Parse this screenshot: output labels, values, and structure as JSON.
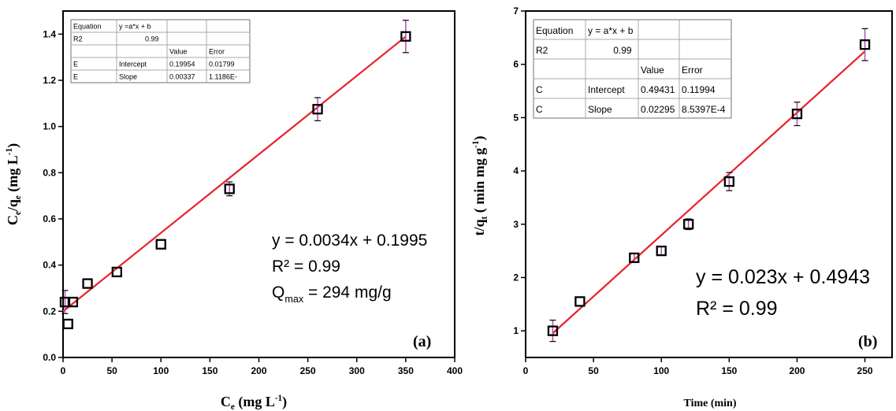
{
  "chart_data": [
    {
      "type": "scatter",
      "panel_label": "(a)",
      "xlabel": {
        "main": "C",
        "sub": "e",
        "unit": " (mg L",
        "sup": "-1",
        "end": ")"
      },
      "ylabel": {
        "main": "C",
        "sub1": "e",
        "mid": "/q",
        "sub2": "e",
        "unit": " (mg L",
        "sup": "-1",
        "end": ")"
      },
      "xlim": [
        0,
        400
      ],
      "ylim": [
        0,
        1.5
      ],
      "xticks": [
        0,
        50,
        100,
        150,
        200,
        250,
        300,
        350,
        400
      ],
      "yticks": [
        0.0,
        0.2,
        0.4,
        0.6,
        0.8,
        1.0,
        1.2,
        1.4
      ],
      "ytick_labels": [
        "0.0",
        "0.2",
        "0.4",
        "0.6",
        "0.8",
        "1.0",
        "1.2",
        "1.4"
      ],
      "points": [
        {
          "x": 2,
          "y": 0.24,
          "err": 0.05
        },
        {
          "x": 5,
          "y": 0.145,
          "err": 0
        },
        {
          "x": 10,
          "y": 0.24,
          "err": 0
        },
        {
          "x": 25,
          "y": 0.32,
          "err": 0
        },
        {
          "x": 55,
          "y": 0.37,
          "err": 0
        },
        {
          "x": 100,
          "y": 0.49,
          "err": 0
        },
        {
          "x": 170,
          "y": 0.73,
          "err": 0.03
        },
        {
          "x": 260,
          "y": 1.075,
          "err": 0.05
        },
        {
          "x": 350,
          "y": 1.39,
          "err": 0.07
        }
      ],
      "fit": {
        "slope": 0.0034,
        "intercept": 0.1995,
        "x_range": [
          0,
          350
        ]
      },
      "fit_color": "#e8212b",
      "errorbar_color": "#b050b0",
      "equation_lines": [
        "y = 0.0034x + 0.1995",
        "R² = 0.99"
      ],
      "qmax": {
        "main": "Q",
        "sub": "max",
        "rest": " = 294 mg/g"
      },
      "table": [
        [
          "Equation",
          "y =a*x + b",
          "",
          ""
        ],
        [
          "R2",
          "0.99",
          "",
          ""
        ],
        [
          "",
          "",
          "Value",
          "Error"
        ],
        [
          "E",
          "Intercept",
          "0.19954",
          "0.01799"
        ],
        [
          "E",
          "Slope",
          "0.00337",
          "1.1186E-"
        ]
      ]
    },
    {
      "type": "scatter",
      "panel_label": "(b)",
      "xlabel": {
        "text": "Time (min)"
      },
      "ylabel": {
        "main": "t/q",
        "sub": "t",
        "unit": " ( min mg g",
        "sup": "-1",
        "end": ")"
      },
      "xlim": [
        0,
        270
      ],
      "ylim": [
        0.5,
        7
      ],
      "xticks": [
        0,
        50,
        100,
        150,
        200,
        250
      ],
      "yticks": [
        1,
        2,
        3,
        4,
        5,
        6,
        7
      ],
      "ytick_labels": [
        "1",
        "2",
        "3",
        "4",
        "5",
        "6",
        "7"
      ],
      "points": [
        {
          "x": 20,
          "y": 1.0,
          "err": 0.2
        },
        {
          "x": 40,
          "y": 1.55,
          "err": 0
        },
        {
          "x": 80,
          "y": 2.37,
          "err": 0.08
        },
        {
          "x": 100,
          "y": 2.5,
          "err": 0.08
        },
        {
          "x": 120,
          "y": 3.0,
          "err": 0.1
        },
        {
          "x": 150,
          "y": 3.8,
          "err": 0.17
        },
        {
          "x": 200,
          "y": 5.07,
          "err": 0.22
        },
        {
          "x": 250,
          "y": 6.37,
          "err": 0.3
        }
      ],
      "fit": {
        "slope": 0.023,
        "intercept": 0.4943,
        "x_range": [
          20,
          250
        ]
      },
      "fit_color": "#e8212b",
      "errorbar_color": "#b050b0",
      "equation_lines": [
        "y = 0.023x + 0.4943",
        "R² = 0.99"
      ],
      "table": [
        [
          "Equation",
          "y = a*x + b",
          "",
          ""
        ],
        [
          "R2",
          "0.99",
          "",
          ""
        ],
        [
          "",
          "",
          "Value",
          "Error"
        ],
        [
          "C",
          "Intercept",
          "0.49431",
          "0.11994"
        ],
        [
          "C",
          "Slope",
          "0.02295",
          "8.5397E-4"
        ]
      ]
    }
  ]
}
